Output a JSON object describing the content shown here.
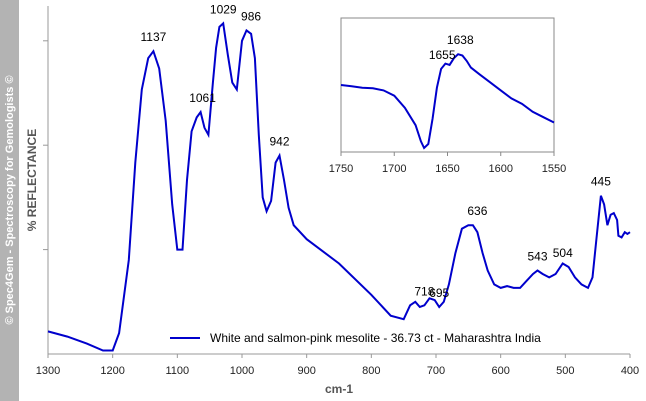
{
  "watermark": "© Spec4Gem - Spectroscopy for Gemologists ©",
  "chart_data": {
    "type": "line",
    "xlabel": "cm-1",
    "ylabel": "% REFLECTANCE",
    "xlim": [
      1300,
      400
    ],
    "ylim": [
      0,
      100
    ],
    "x_ticks": [
      1300,
      1200,
      1100,
      1000,
      900,
      800,
      700,
      600,
      500,
      400
    ],
    "grid": false,
    "line_color": "#0000cc",
    "legend": {
      "position": "bottom-center",
      "label": "White and salmon-pink mesolite - 36.73 ct - Maharashtra India"
    },
    "series": [
      {
        "name": "White and salmon-pink mesolite - 36.73 ct - Maharashtra India",
        "x": [
          1300,
          1270,
          1240,
          1215,
          1200,
          1190,
          1175,
          1165,
          1155,
          1145,
          1137,
          1128,
          1118,
          1108,
          1100,
          1092,
          1085,
          1078,
          1070,
          1064,
          1058,
          1052,
          1045,
          1040,
          1035,
          1029,
          1022,
          1015,
          1008,
          1000,
          993,
          986,
          980,
          974,
          968,
          962,
          955,
          948,
          942,
          935,
          928,
          920,
          900,
          850,
          800,
          770,
          750,
          740,
          732,
          725,
          718,
          710,
          702,
          695,
          688,
          680,
          670,
          660,
          650,
          643,
          636,
          628,
          620,
          610,
          600,
          590,
          580,
          570,
          560,
          550,
          543,
          535,
          525,
          515,
          504,
          495,
          485,
          475,
          465,
          458,
          452,
          445,
          440,
          435,
          430,
          425,
          420,
          418,
          413,
          408,
          404,
          400
        ],
        "y": [
          6.5,
          5,
          3,
          1,
          1,
          6,
          27,
          55,
          76,
          85,
          87,
          82,
          67,
          43,
          30,
          30,
          50,
          64,
          68,
          69.5,
          65,
          63,
          78,
          88,
          94,
          95,
          86,
          78,
          76,
          90,
          93,
          92,
          85,
          63,
          45,
          41,
          44,
          55,
          57,
          50,
          42,
          37,
          33,
          26,
          17,
          11,
          10,
          14,
          15,
          13.5,
          14,
          16,
          15.5,
          13.5,
          15,
          20,
          29,
          36,
          37,
          37,
          35,
          29,
          24,
          20,
          19,
          19.5,
          19,
          19,
          21,
          23,
          24,
          23,
          22,
          23,
          26,
          25,
          22,
          20,
          19,
          22,
          33,
          45.5,
          43,
          37,
          40,
          40.5,
          38.5,
          34,
          33.5,
          35,
          34.5,
          35
        ]
      }
    ],
    "peak_labels": [
      {
        "text": "1137",
        "x": 1137,
        "y": 87
      },
      {
        "text": "1061",
        "x": 1061,
        "y": 69.5
      },
      {
        "text": "1029",
        "x": 1029,
        "y": 95
      },
      {
        "text": "986",
        "x": 986,
        "y": 93
      },
      {
        "text": "942",
        "x": 942,
        "y": 57
      },
      {
        "text": "718",
        "x": 718,
        "y": 14
      },
      {
        "text": "695",
        "x": 695,
        "y": 13.5
      },
      {
        "text": "636",
        "x": 636,
        "y": 37
      },
      {
        "text": "543",
        "x": 543,
        "y": 24
      },
      {
        "text": "504",
        "x": 504,
        "y": 25
      },
      {
        "text": "445",
        "x": 445,
        "y": 45.5
      }
    ],
    "inset": {
      "type": "line",
      "xlim": [
        1750,
        1550
      ],
      "x_ticks": [
        1750,
        1700,
        1650,
        1600,
        1550
      ],
      "x": [
        1750,
        1740,
        1730,
        1720,
        1710,
        1700,
        1690,
        1680,
        1675,
        1672,
        1668,
        1664,
        1660,
        1656,
        1652,
        1648,
        1644,
        1640,
        1636,
        1632,
        1628,
        1620,
        1610,
        1600,
        1590,
        1580,
        1570,
        1560,
        1550
      ],
      "y": [
        50,
        49,
        48,
        47.5,
        46,
        42,
        33,
        20,
        8,
        3,
        6,
        25,
        48,
        62,
        66,
        65,
        70,
        73,
        72,
        68,
        63,
        58,
        52,
        46,
        40,
        36,
        30,
        26,
        22
      ],
      "peak_labels": [
        {
          "text": "1655",
          "x": 1655,
          "y": 62
        },
        {
          "text": "1638",
          "x": 1638,
          "y": 73
        }
      ]
    }
  }
}
